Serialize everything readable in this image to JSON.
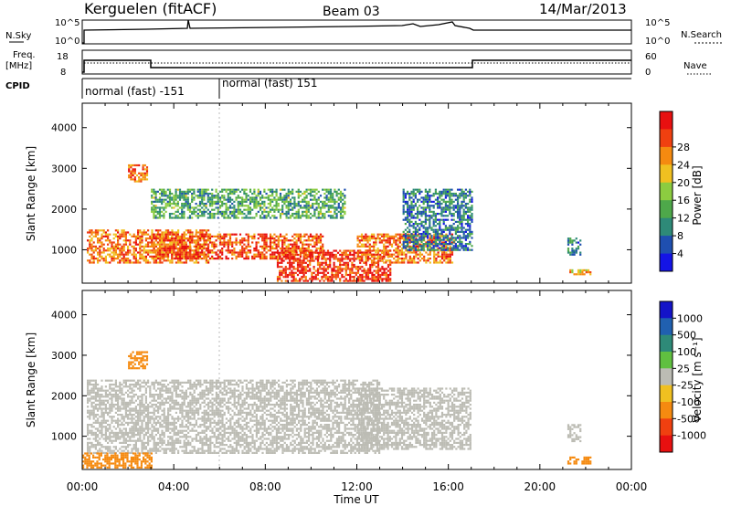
{
  "header": {
    "station": "Kerguelen (fitACF)",
    "beam": "Beam 03",
    "date": "14/Mar/2013"
  },
  "top_panel": {
    "left_label_1": "N.Sky",
    "left_label_2": "Freq.",
    "left_label_3": "[MHz]",
    "left_label_4": "CPID",
    "right_label_1": "N.Search",
    "right_label_2": "Nave",
    "nsky_ticks": [
      "10^5",
      "10^0"
    ],
    "freq_ticks": [
      "18",
      "8"
    ],
    "nave_ticks": [
      "60",
      "0"
    ],
    "cpid_segments": [
      {
        "label": "normal (fast) -151",
        "start": 0,
        "end": 6
      },
      {
        "label": "normal (fast) 151",
        "start": 6,
        "end": 24
      }
    ]
  },
  "power_panel": {
    "ylabel": "Slant Range [km]",
    "colorbar_label": "Power [dB]"
  },
  "velocity_panel": {
    "ylabel": "Slant Range [km]",
    "colorbar_label": "Velocity [m s⁻¹]"
  },
  "x_axis": {
    "label": "Time UT",
    "ticks": [
      "00:00",
      "04:00",
      "08:00",
      "12:00",
      "16:00",
      "20:00",
      "00:00"
    ]
  },
  "chart_data": [
    {
      "type": "heatmap",
      "name": "Power",
      "xlabel": "Time UT",
      "ylabel": "Slant Range [km]",
      "xlim": [
        0,
        24
      ],
      "ylim": [
        180,
        4600
      ],
      "yticks": [
        1000,
        2000,
        3000,
        4000
      ],
      "colorbar": {
        "label": "Power [dB]",
        "ticks": [
          4,
          8,
          12,
          16,
          20,
          24,
          28
        ],
        "colors": [
          "#1414e6",
          "#1f4fb0",
          "#2e8a78",
          "#4ea84a",
          "#8ccc40",
          "#f0c020",
          "#f58a10",
          "#f04010",
          "#e81010"
        ]
      },
      "regions": [
        {
          "t0": 0.2,
          "t1": 5.5,
          "r0": 700,
          "r1": 1500,
          "value": 24
        },
        {
          "t0": 3.0,
          "t1": 10.5,
          "r0": 800,
          "r1": 1400,
          "value": 26
        },
        {
          "t0": 8.5,
          "t1": 13.5,
          "r0": 250,
          "r1": 1000,
          "value": 28
        },
        {
          "t0": 12.0,
          "t1": 16.3,
          "r0": 700,
          "r1": 1400,
          "value": 24
        },
        {
          "t0": 3.0,
          "t1": 11.5,
          "r0": 1800,
          "r1": 2500,
          "value": 12
        },
        {
          "t0": 14.0,
          "t1": 17.0,
          "r0": 1000,
          "r1": 2500,
          "value": 8
        },
        {
          "t0": 2.0,
          "t1": 2.8,
          "r0": 2700,
          "r1": 3100,
          "value": 24
        },
        {
          "t0": 21.2,
          "t1": 21.8,
          "r0": 900,
          "r1": 1300,
          "value": 8
        },
        {
          "t0": 21.2,
          "t1": 22.2,
          "r0": 380,
          "r1": 520,
          "value": 20
        }
      ]
    },
    {
      "type": "heatmap",
      "name": "Velocity",
      "xlabel": "Time UT",
      "ylabel": "Slant Range [km]",
      "xlim": [
        0,
        24
      ],
      "ylim": [
        180,
        4600
      ],
      "yticks": [
        1000,
        2000,
        3000,
        4000
      ],
      "colorbar": {
        "label": "Velocity [m s⁻¹]",
        "ticks": [
          1000,
          500,
          100,
          25,
          -25,
          -100,
          -500,
          -1000
        ],
        "colors": [
          "#1414c8",
          "#2060b0",
          "#2e8a78",
          "#60c040",
          "#bcbcb4",
          "#f0c020",
          "#f58a10",
          "#f04010",
          "#e81010"
        ]
      },
      "regions": [
        {
          "t0": 0.2,
          "t1": 13.0,
          "r0": 600,
          "r1": 2400,
          "value": 0
        },
        {
          "t0": 12.0,
          "t1": 17.0,
          "r0": 700,
          "r1": 2200,
          "value": 0
        },
        {
          "t0": 2.0,
          "t1": 2.8,
          "r0": 2700,
          "r1": 3100,
          "value": -300
        },
        {
          "t0": 0.0,
          "t1": 3.0,
          "r0": 250,
          "r1": 600,
          "value": -300
        },
        {
          "t0": 21.2,
          "t1": 22.2,
          "r0": 350,
          "r1": 500,
          "value": -200
        },
        {
          "t0": 21.2,
          "t1": 21.8,
          "r0": 900,
          "r1": 1300,
          "value": 0
        }
      ]
    }
  ]
}
